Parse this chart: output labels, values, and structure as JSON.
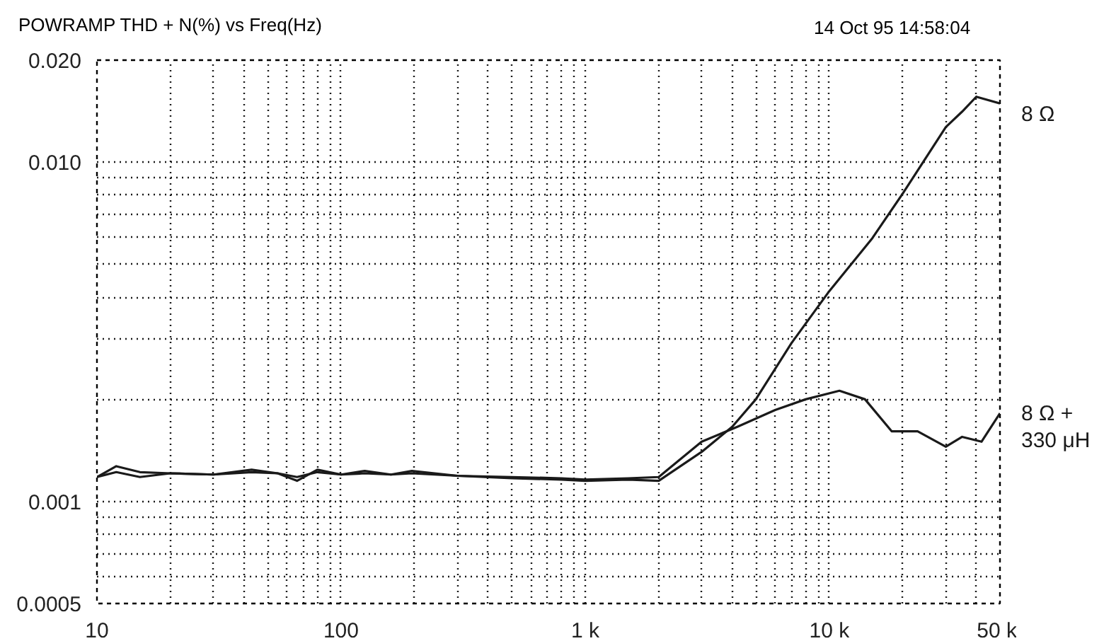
{
  "chart_data": {
    "type": "line",
    "title": "POWRAMP THD + N(%) vs Freq(Hz)",
    "annotations": [
      "14 Oct 95 14:58:04"
    ],
    "log": "xy",
    "grid": true,
    "line_style": "solid",
    "marker": "none",
    "xlim": [
      10,
      50000
    ],
    "ylim": [
      0.0005,
      0.02
    ],
    "xticks": [
      10,
      {
        "value": 20,
        "label": null
      },
      {
        "value": 30,
        "label": null
      },
      {
        "value": 40,
        "label": null
      },
      {
        "value": 50,
        "label": null
      },
      {
        "value": 60,
        "label": null
      },
      {
        "value": 70,
        "label": null
      },
      {
        "value": 80,
        "label": null
      },
      {
        "value": 90,
        "label": null
      },
      100,
      {
        "value": 200,
        "label": null
      },
      {
        "value": 300,
        "label": null
      },
      {
        "value": 400,
        "label": null
      },
      {
        "value": 500,
        "label": null
      },
      {
        "value": 600,
        "label": null
      },
      {
        "value": 700,
        "label": null
      },
      {
        "value": 800,
        "label": null
      },
      {
        "value": 900,
        "label": null
      },
      {
        "value": 1000,
        "label": "1 k"
      },
      {
        "value": 2000,
        "label": null
      },
      {
        "value": 3000,
        "label": null
      },
      {
        "value": 4000,
        "label": null
      },
      {
        "value": 5000,
        "label": null
      },
      {
        "value": 6000,
        "label": null
      },
      {
        "value": 7000,
        "label": null
      },
      {
        "value": 8000,
        "label": null
      },
      {
        "value": 9000,
        "label": null
      },
      {
        "value": 10000,
        "label": "10 k"
      },
      {
        "value": 20000,
        "label": null
      },
      {
        "value": 30000,
        "label": null
      },
      {
        "value": 40000,
        "label": null
      },
      {
        "value": 50000,
        "label": "50 k"
      }
    ],
    "yticks": [
      0.0005,
      {
        "value": 0.0006,
        "label": null
      },
      {
        "value": 0.0007,
        "label": null
      },
      {
        "value": 0.0008,
        "label": null
      },
      {
        "value": 0.0009,
        "label": null
      },
      0.001,
      {
        "value": 0.002,
        "label": null
      },
      {
        "value": 0.003,
        "label": null
      },
      {
        "value": 0.004,
        "label": null
      },
      {
        "value": 0.005,
        "label": null
      },
      {
        "value": 0.006,
        "label": null
      },
      {
        "value": 0.007,
        "label": null
      },
      {
        "value": 0.008,
        "label": null
      },
      {
        "value": 0.009,
        "label": null
      },
      {
        "value": 0.01,
        "label": "0.010"
      },
      {
        "value": 0.02,
        "label": "0.020"
      }
    ],
    "series": [
      {
        "name": "8 Ω",
        "color": "#1a1a1a",
        "x": [
          10,
          12,
          15,
          20,
          30,
          43,
          55,
          66,
          80,
          100,
          125,
          160,
          195,
          300,
          500,
          800,
          1000,
          1500,
          2000,
          3000,
          4000,
          5000,
          7000,
          10000,
          15000,
          20000,
          30000,
          35000,
          40000,
          50000
        ],
        "values": [
          0.00118,
          0.00127,
          0.00122,
          0.00121,
          0.0012,
          0.00124,
          0.00121,
          0.00115,
          0.00124,
          0.0012,
          0.00123,
          0.0012,
          0.00123,
          0.00119,
          0.00117,
          0.00116,
          0.00115,
          0.00116,
          0.00115,
          0.0014,
          0.00166,
          0.002,
          0.00293,
          0.00417,
          0.00597,
          0.00809,
          0.0127,
          0.0141,
          0.0156,
          0.0149
        ]
      },
      {
        "name": "8 Ω + 330 μH",
        "color": "#1a1a1a",
        "x": [
          10,
          12,
          15,
          20,
          30,
          43,
          55,
          66,
          80,
          100,
          125,
          160,
          195,
          300,
          500,
          800,
          1000,
          1500,
          2000,
          3000,
          4200,
          6000,
          8000,
          11000,
          14000,
          18000,
          23000,
          30000,
          35000,
          42000,
          50000
        ],
        "values": [
          0.00118,
          0.00122,
          0.00118,
          0.00121,
          0.0012,
          0.00122,
          0.00121,
          0.00118,
          0.00122,
          0.0012,
          0.00121,
          0.0012,
          0.00121,
          0.00119,
          0.00118,
          0.00117,
          0.00116,
          0.00117,
          0.00118,
          0.0015,
          0.00166,
          0.00186,
          0.002,
          0.00212,
          0.002,
          0.00161,
          0.00161,
          0.00145,
          0.00155,
          0.0015,
          0.00182
        ]
      }
    ]
  }
}
